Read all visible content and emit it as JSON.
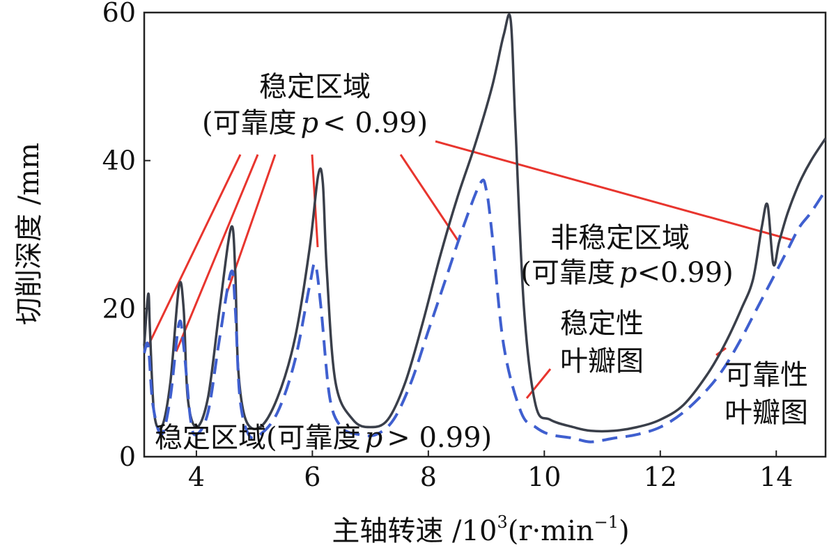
{
  "chart_data": {
    "type": "line",
    "xlabel_main": "主轴转速 /10",
    "xlabel_exp": "3",
    "xlabel_unit_open": "(r·min",
    "xlabel_unit_exp": "−1",
    "xlabel_unit_close": ")",
    "ylabel": "切削深度 /mm",
    "xlim": [
      3.1,
      14.85
    ],
    "ylim": [
      0,
      60
    ],
    "x_ticks": [
      4,
      6,
      8,
      10,
      12,
      14
    ],
    "y_ticks": [
      0,
      20,
      40,
      60
    ],
    "x_tick_labels": [
      "4",
      "6",
      "8",
      "10",
      "12",
      "14"
    ],
    "y_tick_labels": [
      "0",
      "20",
      "40",
      "60"
    ],
    "colors": {
      "stability": "#3a3f4a",
      "reliability": "#3f5fcf",
      "pointer": "#e8352e"
    },
    "series": [
      {
        "name": "稳定性叶瓣图",
        "style": "solid",
        "x": [
          3.1,
          3.17,
          3.2,
          3.27,
          3.4,
          3.55,
          3.7,
          3.78,
          3.85,
          4.0,
          4.2,
          4.4,
          4.6,
          4.67,
          4.72,
          4.85,
          5.1,
          5.4,
          5.7,
          5.95,
          6.1,
          6.18,
          6.25,
          6.4,
          6.7,
          7.0,
          7.3,
          7.6,
          7.9,
          8.2,
          8.5,
          8.8,
          9.1,
          9.3,
          9.42,
          9.5,
          9.65,
          9.85,
          10.1,
          10.5,
          10.8,
          11.2,
          11.6,
          12.0,
          12.4,
          12.8,
          13.1,
          13.4,
          13.6,
          13.75,
          13.85,
          13.95,
          14.05,
          14.2,
          14.4,
          14.6,
          14.85
        ],
        "y": [
          15,
          22,
          17,
          6,
          4,
          10,
          23,
          20,
          8,
          4,
          8,
          20,
          31,
          25,
          12,
          5,
          4,
          8,
          16,
          28,
          38,
          37,
          25,
          10,
          5,
          4,
          5,
          10,
          18,
          27,
          35,
          42,
          50,
          57,
          59,
          45,
          20,
          7,
          5,
          4,
          3.5,
          3.5,
          4,
          5,
          7,
          11,
          15,
          20,
          24,
          31,
          34,
          26,
          29,
          33,
          37,
          40,
          43
        ]
      },
      {
        "name": "可靠性叶瓣图",
        "style": "dashed",
        "x": [
          3.1,
          3.17,
          3.25,
          3.4,
          3.55,
          3.7,
          3.78,
          3.9,
          4.0,
          4.2,
          4.4,
          4.6,
          4.67,
          4.75,
          4.9,
          5.1,
          5.4,
          5.7,
          5.95,
          6.05,
          6.15,
          6.3,
          6.5,
          6.8,
          7.1,
          7.4,
          7.7,
          8.0,
          8.3,
          8.6,
          8.9,
          9.0,
          9.1,
          9.3,
          9.6,
          9.85,
          10.1,
          10.5,
          10.8,
          11.2,
          11.6,
          12.0,
          12.4,
          12.8,
          13.1,
          13.4,
          13.6,
          13.8,
          14.0,
          14.2,
          14.4,
          14.6,
          14.85
        ],
        "y": [
          14,
          15,
          7,
          3,
          8,
          18,
          15,
          5,
          3,
          6,
          16,
          25,
          20,
          8,
          3,
          3,
          6,
          13,
          23,
          26,
          20,
          8,
          4,
          3,
          3,
          5,
          10,
          17,
          24,
          31,
          37,
          36,
          30,
          15,
          6,
          4,
          3,
          2.5,
          2,
          2.5,
          3,
          4,
          6,
          9,
          12,
          16,
          19,
          22,
          25,
          28,
          31,
          33,
          36
        ]
      }
    ],
    "annotations": {
      "stable_upper_line1": "稳定区域",
      "stable_upper_line2_pre": "(可靠度",
      "stable_upper_p": "p",
      "stable_upper_line2_post": "< 0.99)",
      "unstable_line1": "非稳定区域",
      "unstable_line2_pre": "(可靠度",
      "unstable_p": "p",
      "unstable_line2_post": "<0.99)",
      "stability_lobe_line1": "稳定性",
      "stability_lobe_line2": "叶瓣图",
      "reliability_lobe_line1": "可靠性",
      "reliability_lobe_line2": "叶瓣图",
      "stable_lower_pre": "稳定区域(可靠度",
      "stable_lower_p": "p",
      "stable_lower_post": "> 0.99)"
    }
  }
}
